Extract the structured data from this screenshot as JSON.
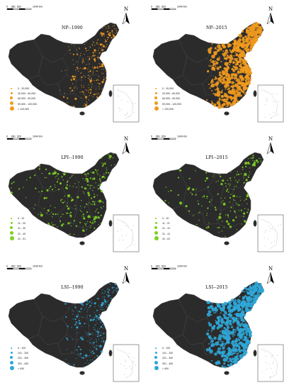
{
  "scale": {
    "labels": [
      "0",
      "260",
      "520",
      "1040 Km"
    ]
  },
  "north_label": "N",
  "panels": [
    {
      "title": "NP--1990",
      "color": "#f09a1e",
      "density": "low-east",
      "legend": [
        "0 - 20,000",
        "20,000 - 60,000",
        "60,000 - 90,000",
        "90,000 - 120,000",
        "> 120,000"
      ]
    },
    {
      "title": "NP--2015",
      "color": "#f09a1e",
      "density": "high-east",
      "legend": [
        "0 - 20,000",
        "20,000 - 60,000",
        "60,000 - 90,000",
        "90,000 - 120,000",
        "> 120,000"
      ]
    },
    {
      "title": "LPI--1990",
      "color": "#7ed321",
      "density": "spread",
      "legend": [
        "0 - 10",
        "11 - 20",
        "21 - 30",
        "31 - 40",
        "41 - 51"
      ]
    },
    {
      "title": "LPI--2015",
      "color": "#7ed321",
      "density": "spread-light",
      "legend": [
        "0 - 10",
        "11 - 21",
        "21 - 31",
        "31 - 41",
        "41 - 61"
      ]
    },
    {
      "title": "LSI--1990",
      "color": "#2fa7d8",
      "density": "low-east",
      "legend": [
        "0 - 100",
        "101 - 200",
        "201 - 300",
        "301 - 400",
        "> 400"
      ]
    },
    {
      "title": "LSI--2015",
      "color": "#2fa7d8",
      "density": "high-east",
      "legend": [
        "0 - 100",
        "101 - 200",
        "201 - 300",
        "301 - 400",
        "> 400"
      ]
    }
  ]
}
